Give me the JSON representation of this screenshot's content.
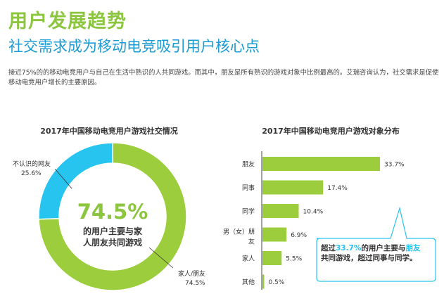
{
  "header": {
    "title": "用户发展趋势",
    "subtitle": "社交需求成为移动电竞吸引用户核心点",
    "description": "接近75%的的移动电竞用户与自己在生活中熟识的人共同游戏。而其中，朋友是所有熟识的游戏对象中比例最高的。艾瑞咨询认为，社交需求是促使移动电竞用户增长的主要原因。"
  },
  "chart_data": [
    {
      "type": "pie",
      "title": "2017年中国移动电竞用户游戏社交情况",
      "slices": [
        {
          "label": "家人/朋友",
          "value": 74.5,
          "value_label": "74.5%",
          "color": "#9ccd3c"
        },
        {
          "label": "不认识的网友",
          "value": 25.6,
          "value_label": "25.6%",
          "color": "#27c4ef"
        }
      ],
      "center_value": "74.5%",
      "center_text": "的用户主要与家人朋友共同游戏"
    },
    {
      "type": "bar",
      "orientation": "horizontal",
      "title": "2017年中国移动电竞用户游戏对象分布",
      "categories": [
        "朋友",
        "同事",
        "同学",
        "男（女）朋友",
        "家人",
        "其他"
      ],
      "values": [
        33.7,
        17.4,
        10.4,
        6.9,
        5.5,
        0.5
      ],
      "value_labels": [
        "33.7%",
        "17.4%",
        "10.4%",
        "6.9%",
        "5.5%",
        "0.5%"
      ],
      "bar_color": "#9ccd3c",
      "xlim": [
        0,
        35
      ]
    }
  ],
  "callout": {
    "prefix": "超过",
    "value1": "33.7%",
    "mid1": "的用户主要与",
    "highlight": "朋友",
    "mid2": "共同游戏，超过同事与同学。"
  },
  "colors": {
    "green": "#9ccd3c",
    "blue": "#27c4ef",
    "title_green": "#8cc63f",
    "subtitle_blue": "#1a9bd6"
  }
}
